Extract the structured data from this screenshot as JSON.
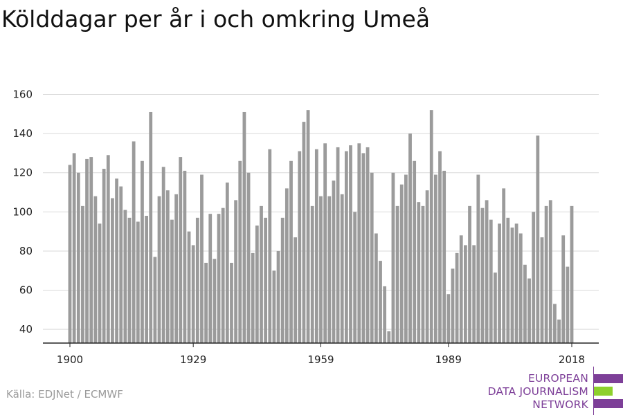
{
  "page": {
    "title": "Kölddagar per år i och omkring Umeå"
  },
  "footer": {
    "source": "Källa: EDJNet / ECMWF"
  },
  "logo": {
    "lines": [
      "EUROPEAN",
      "DATA JOURNALISM",
      "NETWORK"
    ],
    "colors": {
      "text": "#7d3f98",
      "bar_purple": "#7d3f98",
      "bar_green": "#8dd02c"
    }
  },
  "chart_data": {
    "type": "bar",
    "title": "Kölddagar per år i och omkring Umeå",
    "xlabel": "",
    "ylabel": "",
    "x_start": 1900,
    "x_end": 2018,
    "x_ticks": [
      1900,
      1929,
      1959,
      1989,
      2018
    ],
    "y_ticks": [
      40,
      60,
      80,
      100,
      120,
      140,
      160
    ],
    "ylim": [
      33,
      163
    ],
    "grid": true,
    "legend": "none",
    "bar_color": "#9b9b9b",
    "values": [
      124,
      130,
      120,
      103,
      127,
      128,
      108,
      94,
      122,
      129,
      107,
      117,
      113,
      101,
      97,
      136,
      95,
      126,
      98,
      151,
      77,
      108,
      123,
      111,
      96,
      109,
      128,
      121,
      90,
      83,
      97,
      119,
      74,
      99,
      76,
      99,
      102,
      115,
      74,
      106,
      126,
      151,
      120,
      79,
      93,
      103,
      97,
      132,
      70,
      80,
      97,
      112,
      126,
      87,
      131,
      146,
      152,
      103,
      132,
      108,
      135,
      108,
      116,
      133,
      109,
      131,
      134,
      100,
      135,
      130,
      133,
      120,
      89,
      75,
      62,
      39,
      120,
      103,
      114,
      119,
      140,
      126,
      105,
      103,
      111,
      152,
      119,
      131,
      121,
      58,
      71,
      79,
      88,
      83,
      103,
      83,
      119,
      102,
      106,
      96,
      69,
      94,
      112,
      97,
      92,
      94,
      89,
      73,
      66,
      100,
      139,
      87,
      103,
      106,
      53,
      45,
      88,
      72,
      103
    ]
  }
}
